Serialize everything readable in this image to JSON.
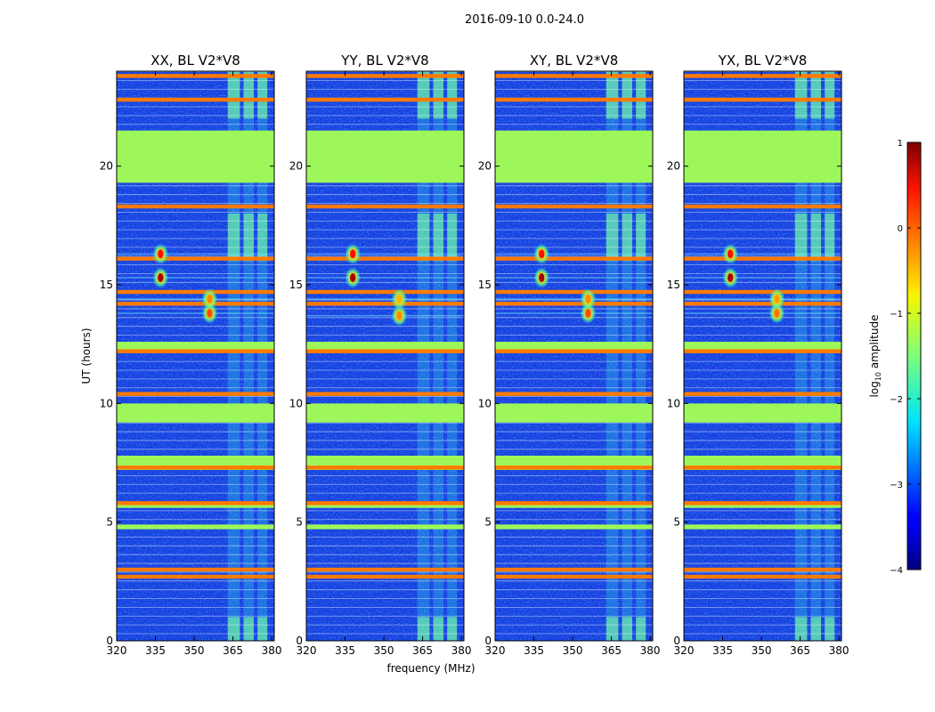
{
  "figure": {
    "suptitle": "2016-09-10 0.0-24.0",
    "shared_xlabel": "frequency (MHz)",
    "shared_ylabel": "UT (hours)"
  },
  "colors": {
    "rfi_flag": "#ff7a00",
    "bad_time": "#9ef75a",
    "background": "#1a3fe0"
  },
  "chart_data": [
    {
      "type": "heatmap",
      "title": "XX, BL V2*V8",
      "xlim": [
        320,
        381
      ],
      "ylim": [
        0,
        24
      ],
      "xticks": [
        320,
        335,
        350,
        365,
        380
      ],
      "yticks": [
        0,
        5,
        10,
        15,
        20
      ],
      "ylabel": "UT (hours)",
      "xlabel": "",
      "sources": [
        {
          "freq": 337,
          "ut": 15.3,
          "amp": 0.8
        },
        {
          "freq": 337,
          "ut": 16.3,
          "amp": 0.3
        },
        {
          "freq": 356,
          "ut": 13.8,
          "amp": 0.0
        },
        {
          "freq": 356,
          "ut": 14.4,
          "amp": -0.3
        }
      ]
    },
    {
      "type": "heatmap",
      "title": "YY, BL V2*V8",
      "xlim": [
        320,
        381
      ],
      "ylim": [
        0,
        24
      ],
      "xticks": [
        320,
        335,
        350,
        365,
        380
      ],
      "yticks": [
        0,
        5,
        10,
        15,
        20
      ],
      "ylabel": "",
      "xlabel": "frequency (MHz)",
      "sources": [
        {
          "freq": 338,
          "ut": 15.3,
          "amp": 0.8
        },
        {
          "freq": 338,
          "ut": 16.3,
          "amp": 0.3
        },
        {
          "freq": 356,
          "ut": 13.7,
          "amp": -0.3
        },
        {
          "freq": 356,
          "ut": 14.4,
          "amp": -0.5
        }
      ]
    },
    {
      "type": "heatmap",
      "title": "XY, BL V2*V8",
      "xlim": [
        320,
        381
      ],
      "ylim": [
        0,
        24
      ],
      "xticks": [
        320,
        335,
        350,
        365,
        380
      ],
      "yticks": [
        0,
        5,
        10,
        15,
        20
      ],
      "ylabel": "",
      "xlabel": "",
      "sources": [
        {
          "freq": 338,
          "ut": 15.3,
          "amp": 0.8
        },
        {
          "freq": 338,
          "ut": 16.3,
          "amp": 0.3
        },
        {
          "freq": 356,
          "ut": 13.8,
          "amp": 0.0
        },
        {
          "freq": 356,
          "ut": 14.4,
          "amp": -0.3
        }
      ]
    },
    {
      "type": "heatmap",
      "title": "YX, BL V2*V8",
      "xlim": [
        320,
        381
      ],
      "ylim": [
        0,
        24
      ],
      "xticks": [
        320,
        335,
        350,
        365,
        380
      ],
      "yticks": [
        0,
        5,
        10,
        15,
        20
      ],
      "ylabel": "",
      "xlabel": "",
      "sources": [
        {
          "freq": 338,
          "ut": 15.3,
          "amp": 0.8
        },
        {
          "freq": 338,
          "ut": 16.3,
          "amp": 0.3
        },
        {
          "freq": 356,
          "ut": 13.8,
          "amp": -0.2
        },
        {
          "freq": 356,
          "ut": 14.4,
          "amp": -0.4
        }
      ]
    },
    {
      "type": "colorbar",
      "label": "log10 amplitude",
      "label_base": "log",
      "label_sub": "10",
      "label_rest": " amplitude",
      "range": [
        -4,
        1
      ],
      "ticks": [
        -4,
        -3,
        -2,
        -1,
        0,
        1
      ],
      "tick_labels": [
        "−4",
        "−3",
        "−2",
        "−1",
        "0",
        "1"
      ],
      "colormap": "jet"
    }
  ],
  "masking": {
    "flagged_times_ut": [
      23.8,
      22.8,
      18.3,
      16.1,
      14.7,
      14.2,
      12.2,
      10.4,
      7.3,
      5.8,
      3.0,
      2.7
    ],
    "bad_time_ranges_ut": [
      [
        19.3,
        21.5
      ],
      [
        9.2,
        10.0
      ],
      [
        12.2,
        12.6
      ],
      [
        4.7,
        4.9
      ],
      [
        5.6,
        5.8
      ],
      [
        7.2,
        7.8
      ]
    ],
    "rfi_freq_band_mhz": [
      363,
      381
    ]
  }
}
